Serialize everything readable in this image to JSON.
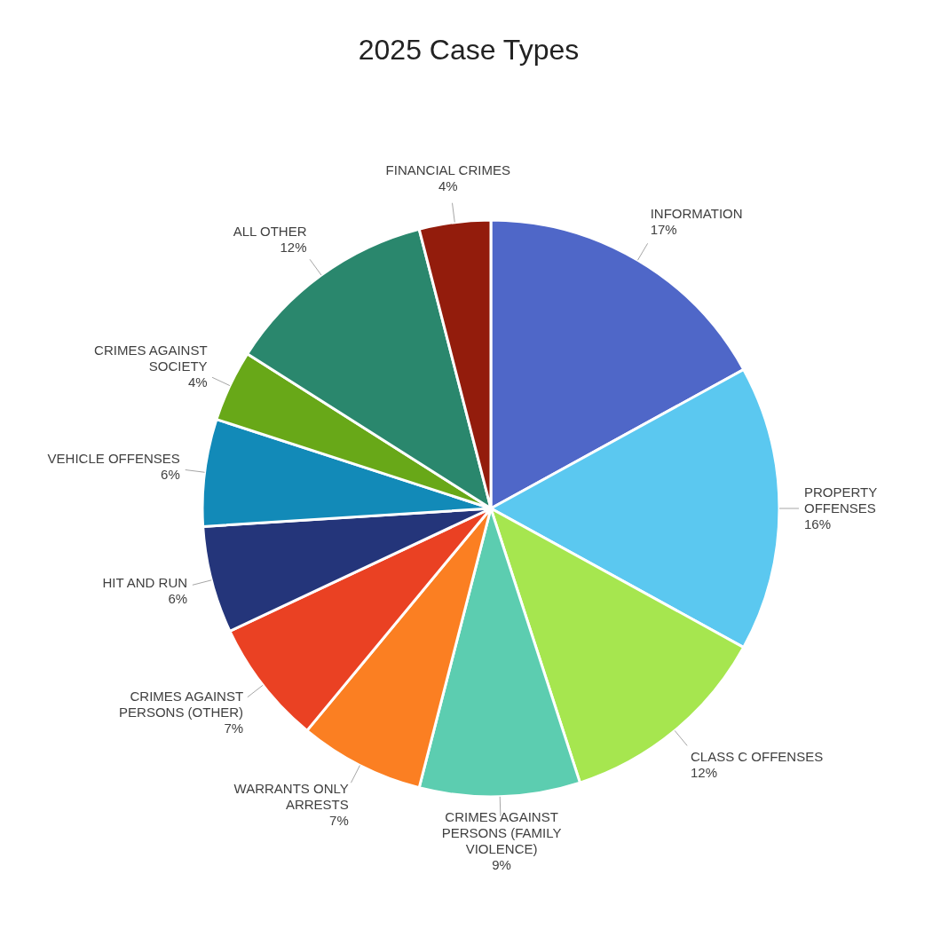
{
  "chart_data": {
    "type": "pie",
    "title": "2025 Case Types",
    "categories": [
      "INFORMATION",
      "PROPERTY OFFENSES",
      "CLASS C OFFENSES",
      "CRIMES AGAINST PERSONS (FAMILY VIOLENCE)",
      "WARRANTS ONLY ARRESTS",
      "CRIMES AGAINST PERSONS (OTHER)",
      "HIT AND RUN",
      "VEHICLE OFFENSES",
      "CRIMES AGAINST SOCIETY",
      "ALL OTHER",
      "FINANCIAL CRIMES"
    ],
    "values": [
      17,
      16,
      12,
      9,
      7,
      7,
      6,
      6,
      4,
      12,
      4
    ],
    "value_labels": [
      "17%",
      "16%",
      "12%",
      "9%",
      "7%",
      "7%",
      "6%",
      "6%",
      "4%",
      "12%",
      "4%"
    ],
    "colors": [
      "#4f67c8",
      "#5bc8f0",
      "#a6e64f",
      "#5ccdb0",
      "#fb7f22",
      "#ea4123",
      "#24357a",
      "#128ab8",
      "#68a818",
      "#2a876d",
      "#931c0c"
    ],
    "legend": false
  }
}
